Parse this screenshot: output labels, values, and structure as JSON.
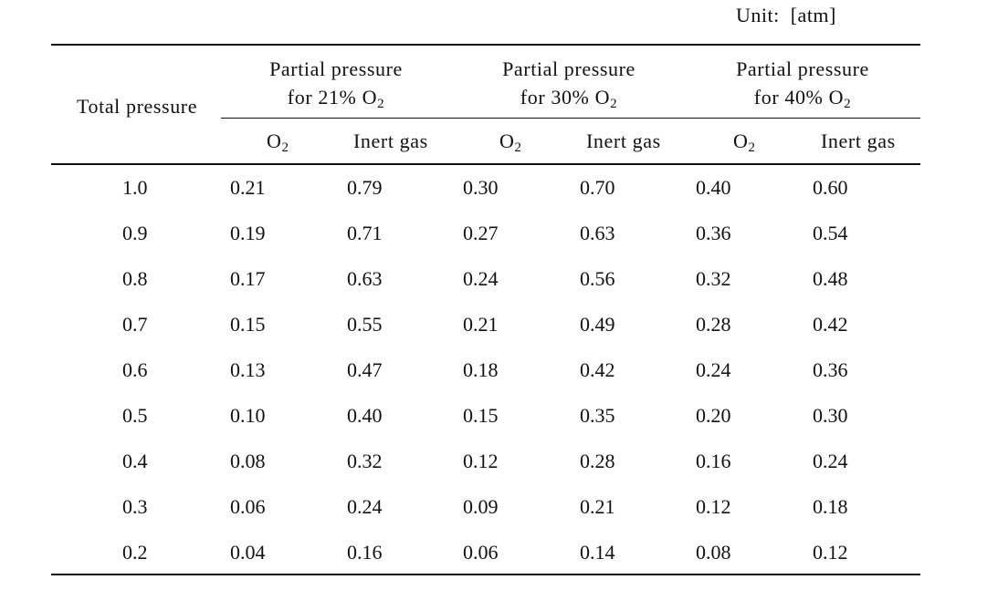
{
  "unit_label": "Unit:  [atm]",
  "header": {
    "total_pressure": "Total  pressure",
    "groups": [
      {
        "line1": "Partial  pressure",
        "line2_prefix": "for  21%  O",
        "line2_sub": "2"
      },
      {
        "line1": "Partial  pressure",
        "line2_prefix": "for  30%  O",
        "line2_sub": "2"
      },
      {
        "line1": "Partial  pressure",
        "line2_prefix": "for  40%  O",
        "line2_sub": "2"
      }
    ],
    "sub_columns": [
      {
        "prefix": "O",
        "sub": "2"
      },
      {
        "label": "Inert  gas"
      },
      {
        "prefix": "O",
        "sub": "2"
      },
      {
        "label": "Inert  gas"
      },
      {
        "prefix": "O",
        "sub": "2"
      },
      {
        "label": "Inert  gas"
      }
    ]
  },
  "rows": [
    [
      "1.0",
      "0.21",
      "0.79",
      "0.30",
      "0.70",
      "0.40",
      "0.60"
    ],
    [
      "0.9",
      "0.19",
      "0.71",
      "0.27",
      "0.63",
      "0.36",
      "0.54"
    ],
    [
      "0.8",
      "0.17",
      "0.63",
      "0.24",
      "0.56",
      "0.32",
      "0.48"
    ],
    [
      "0.7",
      "0.15",
      "0.55",
      "0.21",
      "0.49",
      "0.28",
      "0.42"
    ],
    [
      "0.6",
      "0.13",
      "0.47",
      "0.18",
      "0.42",
      "0.24",
      "0.36"
    ],
    [
      "0.5",
      "0.10",
      "0.40",
      "0.15",
      "0.35",
      "0.20",
      "0.30"
    ],
    [
      "0.4",
      "0.08",
      "0.32",
      "0.12",
      "0.28",
      "0.16",
      "0.24"
    ],
    [
      "0.3",
      "0.06",
      "0.24",
      "0.09",
      "0.21",
      "0.12",
      "0.18"
    ],
    [
      "0.2",
      "0.04",
      "0.16",
      "0.06",
      "0.14",
      "0.08",
      "0.12"
    ]
  ]
}
